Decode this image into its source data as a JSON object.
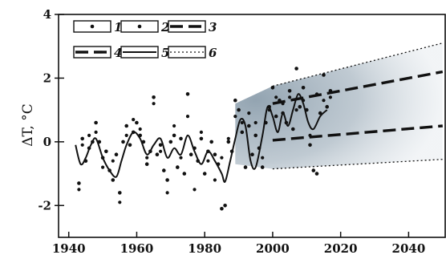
{
  "chart_data": {
    "type": "scatter",
    "title": "",
    "xlabel": "",
    "ylabel": "ΔT, °C",
    "xlim": [
      1937,
      2051
    ],
    "ylim": [
      -3,
      4
    ],
    "x_ticks": [
      1940,
      1960,
      1980,
      2000,
      2020,
      2040
    ],
    "y_ticks": [
      4,
      2,
      0,
      -2
    ],
    "grid": false,
    "legend_position": "top-left",
    "colors": {
      "markers": "#111111",
      "shade": "#9fb0bd",
      "axis": "#111111"
    },
    "series": [
      {
        "name": "1",
        "type": "scatter",
        "points": [
          [
            1943,
            -1.3
          ],
          [
            1944,
            0.1
          ],
          [
            1945,
            -0.6
          ],
          [
            1946,
            -0.2
          ],
          [
            1947,
            0.0
          ],
          [
            1948,
            0.6
          ],
          [
            1949,
            0.0
          ],
          [
            1950,
            -0.5
          ],
          [
            1951,
            -0.3
          ],
          [
            1952,
            -0.9
          ],
          [
            1953,
            -1.2
          ],
          [
            1954,
            -0.4
          ],
          [
            1955,
            -1.6
          ],
          [
            1956,
            0.0
          ],
          [
            1957,
            0.5
          ],
          [
            1958,
            -0.1
          ],
          [
            1959,
            0.3
          ],
          [
            1960,
            0.6
          ],
          [
            1961,
            0.2
          ],
          [
            1962,
            0.0
          ],
          [
            1963,
            -0.7
          ],
          [
            1964,
            -0.3
          ],
          [
            1965,
            1.4
          ],
          [
            1966,
            -0.4
          ],
          [
            1967,
            -0.1
          ],
          [
            1968,
            -0.9
          ],
          [
            1969,
            -1.2
          ],
          [
            1970,
            0.0
          ],
          [
            1971,
            0.2
          ],
          [
            1972,
            -0.8
          ],
          [
            1973,
            0.1
          ],
          [
            1974,
            -1.0
          ],
          [
            1975,
            1.5
          ],
          [
            1976,
            -0.4
          ],
          [
            1977,
            -0.2
          ],
          [
            1978,
            -0.6
          ],
          [
            1979,
            0.1
          ],
          [
            1980,
            -1.0
          ],
          [
            1981,
            -0.3
          ],
          [
            1982,
            0.0
          ],
          [
            1983,
            -0.4
          ],
          [
            1984,
            -0.7
          ],
          [
            1985,
            -2.1
          ],
          [
            1986,
            -2.0
          ],
          [
            1987,
            0.0
          ],
          [
            1988,
            -0.3
          ],
          [
            1989,
            1.3
          ],
          [
            1990,
            1.0
          ],
          [
            1991,
            0.3
          ],
          [
            1992,
            -0.8
          ],
          [
            1993,
            0.5
          ],
          [
            1994,
            -0.4
          ],
          [
            1995,
            0.2
          ],
          [
            1996,
            -0.2
          ],
          [
            1997,
            -0.8
          ],
          [
            1998,
            0.6
          ],
          [
            1999,
            1.1
          ],
          [
            2000,
            1.7
          ],
          [
            2001,
            0.8
          ],
          [
            2002,
            1.3
          ],
          [
            2003,
            0.9
          ],
          [
            2004,
            0.6
          ],
          [
            2005,
            1.6
          ],
          [
            2006,
            0.4
          ],
          [
            2007,
            2.3
          ],
          [
            2008,
            1.1
          ],
          [
            2009,
            1.7
          ],
          [
            2010,
            1.0
          ],
          [
            2011,
            -0.1
          ],
          [
            2012,
            -0.9
          ],
          [
            2013,
            -1.0
          ],
          [
            2014,
            0.9
          ],
          [
            2015,
            2.1
          ],
          [
            2016,
            1.1
          ],
          [
            2017,
            1.6
          ]
        ]
      },
      {
        "name": "2",
        "type": "scatter",
        "points": [
          [
            1943,
            -1.5
          ],
          [
            1944,
            -0.1
          ],
          [
            1946,
            0.2
          ],
          [
            1948,
            0.3
          ],
          [
            1950,
            -0.8
          ],
          [
            1953,
            -0.6
          ],
          [
            1955,
            -1.9
          ],
          [
            1957,
            0.2
          ],
          [
            1959,
            0.7
          ],
          [
            1961,
            0.4
          ],
          [
            1963,
            -0.5
          ],
          [
            1965,
            1.2
          ],
          [
            1967,
            -0.3
          ],
          [
            1969,
            -1.6
          ],
          [
            1971,
            0.5
          ],
          [
            1973,
            -0.5
          ],
          [
            1975,
            0.8
          ],
          [
            1977,
            -1.5
          ],
          [
            1979,
            0.3
          ],
          [
            1981,
            -0.6
          ],
          [
            1983,
            -1.2
          ],
          [
            1985,
            -0.5
          ],
          [
            1987,
            0.1
          ],
          [
            1989,
            0.8
          ],
          [
            1991,
            0.6
          ],
          [
            1993,
            0.9
          ],
          [
            1995,
            0.6
          ],
          [
            1997,
            -0.5
          ],
          [
            1999,
            1.0
          ],
          [
            2001,
            1.4
          ],
          [
            2003,
            1.2
          ],
          [
            2005,
            1.4
          ],
          [
            2007,
            1.0
          ],
          [
            2009,
            1.3
          ],
          [
            2011,
            0.2
          ],
          [
            2013,
            1.5
          ],
          [
            2015,
            1.3
          ],
          [
            2017,
            1.4
          ]
        ]
      },
      {
        "name": "3",
        "type": "line",
        "style": "long-dash",
        "points": [
          [
            2000,
            0.05
          ],
          [
            2050,
            0.5
          ]
        ]
      },
      {
        "name": "4",
        "type": "line",
        "style": "long-dash",
        "points": [
          [
            2000,
            1.2
          ],
          [
            2050,
            2.2
          ]
        ]
      },
      {
        "name": "5",
        "type": "line",
        "style": "solid",
        "points": [
          [
            1942,
            -0.1
          ],
          [
            1943.5,
            -0.7
          ],
          [
            1945,
            -0.5
          ],
          [
            1946.5,
            -0.1
          ],
          [
            1948,
            0.1
          ],
          [
            1950,
            -0.5
          ],
          [
            1952,
            -0.9
          ],
          [
            1954,
            -1.1
          ],
          [
            1955.5,
            -0.6
          ],
          [
            1957,
            -0.1
          ],
          [
            1959,
            0.3
          ],
          [
            1961,
            0.1
          ],
          [
            1963,
            -0.4
          ],
          [
            1965,
            -0.1
          ],
          [
            1967,
            0.1
          ],
          [
            1969,
            -0.5
          ],
          [
            1971,
            -0.2
          ],
          [
            1973,
            -0.4
          ],
          [
            1975,
            0.2
          ],
          [
            1977,
            -0.3
          ],
          [
            1979,
            -0.7
          ],
          [
            1981,
            -0.3
          ],
          [
            1983,
            -0.6
          ],
          [
            1985,
            -1.0
          ],
          [
            1986,
            -1.25
          ],
          [
            1987.5,
            -0.6
          ],
          [
            1989,
            0.1
          ],
          [
            1990.5,
            0.7
          ],
          [
            1992,
            0.5
          ],
          [
            1993.5,
            -0.6
          ],
          [
            1995,
            -0.8
          ],
          [
            1997,
            0.2
          ],
          [
            1998.5,
            1.1
          ],
          [
            2000,
            0.8
          ],
          [
            2001.5,
            0.3
          ],
          [
            2003,
            0.9
          ],
          [
            2004.5,
            0.5
          ],
          [
            2006,
            1.0
          ],
          [
            2007.5,
            1.5
          ],
          [
            2009,
            1.2
          ],
          [
            2010.5,
            0.6
          ],
          [
            2012,
            0.4
          ],
          [
            2014,
            0.8
          ],
          [
            2016,
            1.0
          ]
        ]
      },
      {
        "name": "6",
        "type": "line",
        "style": "dotted",
        "points": [
          [
            2000,
            1.75
          ],
          [
            2050,
            3.1
          ]
        ],
        "lower_points": [
          [
            2000,
            -0.85
          ],
          [
            2050,
            -0.55
          ]
        ]
      }
    ],
    "legend_entries": [
      "1",
      "2",
      "3",
      "4",
      "5",
      "6"
    ]
  }
}
